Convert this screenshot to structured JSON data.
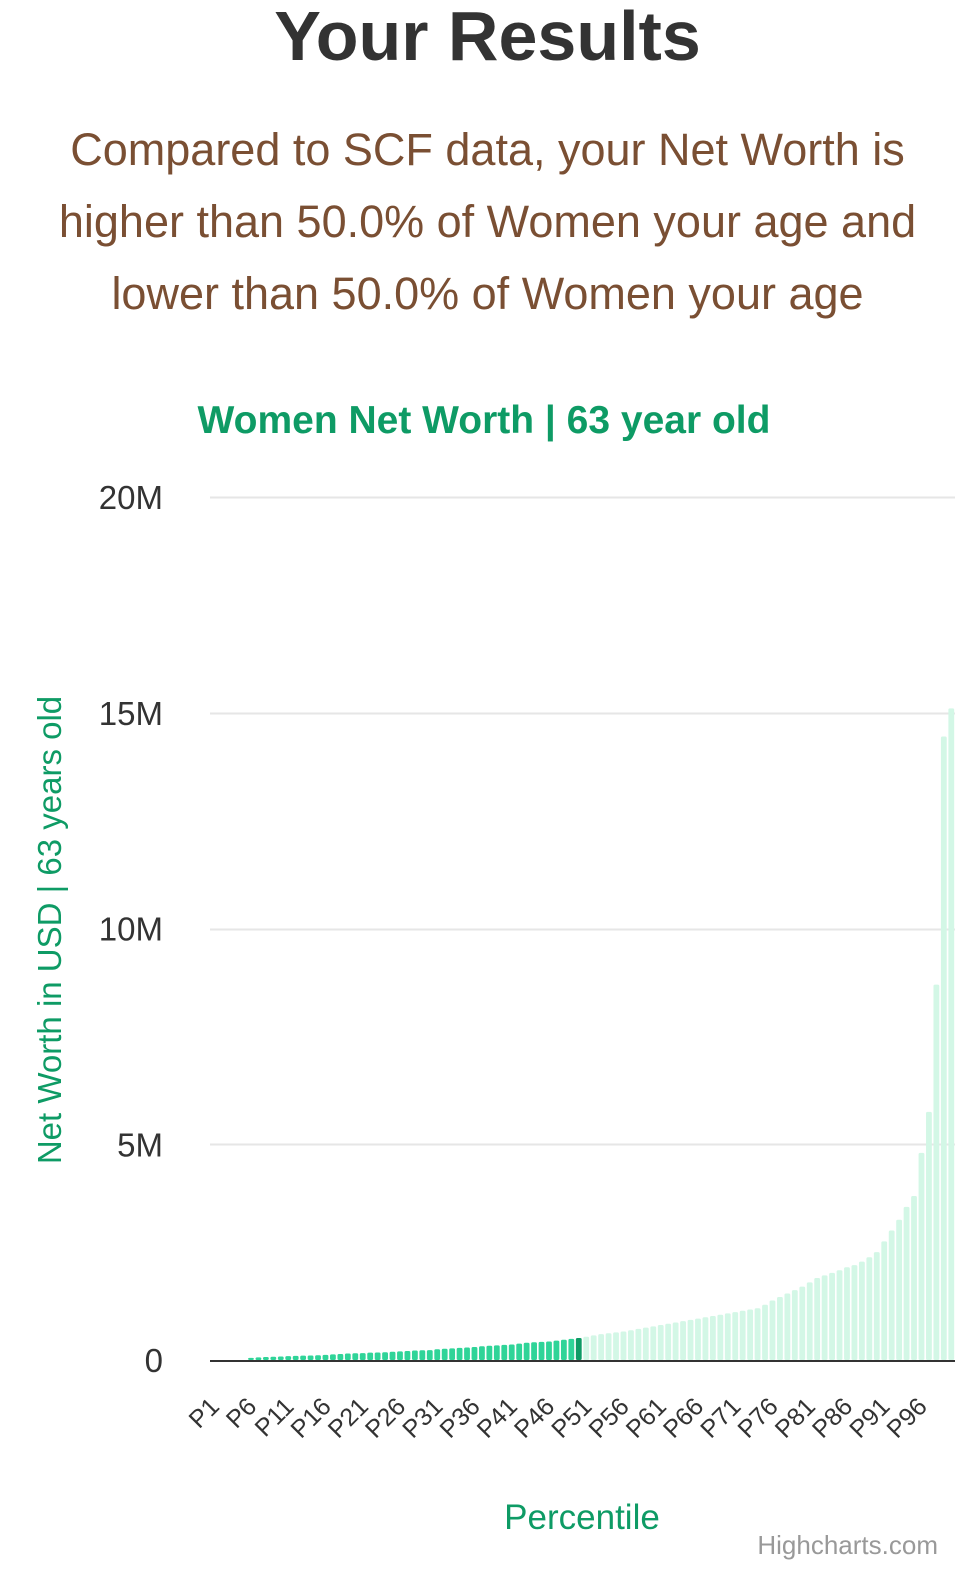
{
  "page": {
    "heading": "Your Results",
    "summary": "Compared to SCF data, your Net Worth is higher than 50.0% of Women your age and lower than 50.0% of Women your age"
  },
  "colors": {
    "heading": "#333333",
    "summary": "#7a4f33",
    "accent": "#0e9b65",
    "bar_below": "#2fd498",
    "bar_user": "#0e9b65",
    "bar_above": "#d3f7e6",
    "grid": "#e6e6e6",
    "credits": "#999999"
  },
  "chart_data": {
    "type": "bar",
    "title": "Women Net Worth | 63 year old",
    "xlabel": "Percentile",
    "ylabel": "Net Worth in USD | 63 years old",
    "ylim": [
      0,
      20000000
    ],
    "yticks": [
      0,
      5000000,
      10000000,
      15000000,
      20000000
    ],
    "ytick_labels": [
      "0",
      "5M",
      "10M",
      "15M",
      "20M"
    ],
    "grid": true,
    "legend": false,
    "highlight_index": 49,
    "categories": [
      "P1",
      "P2",
      "P3",
      "P4",
      "P5",
      "P6",
      "P7",
      "P8",
      "P9",
      "P10",
      "P11",
      "P12",
      "P13",
      "P14",
      "P15",
      "P16",
      "P17",
      "P18",
      "P19",
      "P20",
      "P21",
      "P22",
      "P23",
      "P24",
      "P25",
      "P26",
      "P27",
      "P28",
      "P29",
      "P30",
      "P31",
      "P32",
      "P33",
      "P34",
      "P35",
      "P36",
      "P37",
      "P38",
      "P39",
      "P40",
      "P41",
      "P42",
      "P43",
      "P44",
      "P45",
      "P46",
      "P47",
      "P48",
      "P49",
      "P50",
      "P51",
      "P52",
      "P53",
      "P54",
      "P55",
      "P56",
      "P57",
      "P58",
      "P59",
      "P60",
      "P61",
      "P62",
      "P63",
      "P64",
      "P65",
      "P66",
      "P67",
      "P68",
      "P69",
      "P70",
      "P71",
      "P72",
      "P73",
      "P74",
      "P75",
      "P76",
      "P77",
      "P78",
      "P79",
      "P80",
      "P81",
      "P82",
      "P83",
      "P84",
      "P85",
      "P86",
      "P87",
      "P88",
      "P89",
      "P90",
      "P91",
      "P92",
      "P93",
      "P94",
      "P95",
      "P96",
      "P97",
      "P98",
      "P99",
      "P100"
    ],
    "x_tick_labels": [
      "P1",
      "P6",
      "P11",
      "P16",
      "P21",
      "P26",
      "P31",
      "P36",
      "P41",
      "P46",
      "P51",
      "P56",
      "P61",
      "P66",
      "P71",
      "P76",
      "P81",
      "P86",
      "P91",
      "P96"
    ],
    "values": [
      0,
      0,
      0,
      0,
      0,
      50000,
      60000,
      70000,
      75000,
      80000,
      90000,
      95000,
      100000,
      105000,
      110000,
      120000,
      130000,
      140000,
      150000,
      155000,
      160000,
      170000,
      175000,
      180000,
      190000,
      200000,
      210000,
      220000,
      225000,
      230000,
      250000,
      260000,
      270000,
      280000,
      290000,
      300000,
      320000,
      330000,
      340000,
      350000,
      360000,
      380000,
      400000,
      410000,
      420000,
      430000,
      450000,
      470000,
      490000,
      510000,
      540000,
      570000,
      600000,
      620000,
      640000,
      660000,
      690000,
      720000,
      750000,
      780000,
      810000,
      840000,
      870000,
      900000,
      930000,
      960000,
      990000,
      1020000,
      1050000,
      1080000,
      1110000,
      1140000,
      1170000,
      1200000,
      1280000,
      1380000,
      1460000,
      1540000,
      1620000,
      1700000,
      1800000,
      1900000,
      1960000,
      2020000,
      2080000,
      2150000,
      2200000,
      2280000,
      2380000,
      2500000,
      2750000,
      3000000,
      3250000,
      3550000,
      3800000,
      4800000,
      5750000,
      8700000,
      14450000,
      15100000
    ]
  },
  "credits": "Highcharts.com"
}
